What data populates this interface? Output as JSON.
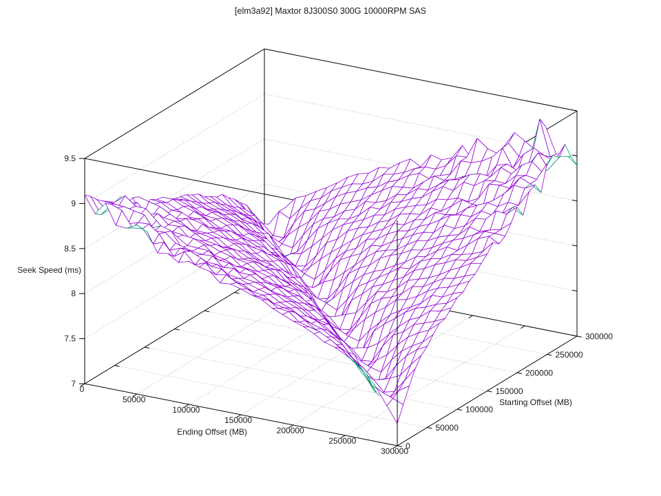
{
  "title": "[elm3a92] Maxtor 8J300S0 300G 10000RPM SAS",
  "chart_data": {
    "type": "surface3d",
    "title": "[elm3a92] Maxtor 8J300S0 300G 10000RPM SAS",
    "xlabel": "Ending Offset (MB)",
    "ylabel": "Starting Offset (MB)",
    "zlabel": "Seek Speed (ms)",
    "x_range": [
      0,
      300000
    ],
    "y_range": [
      0,
      300000
    ],
    "z_range": [
      7,
      9.5
    ],
    "x_ticks": [
      0,
      50000,
      100000,
      150000,
      200000,
      250000,
      300000
    ],
    "y_ticks": [
      0,
      50000,
      100000,
      150000,
      200000,
      250000,
      300000
    ],
    "z_ticks": [
      7,
      7.5,
      8,
      8.5,
      9,
      9.5
    ],
    "grid": true,
    "legend": "none",
    "surface_color": "#9400d3",
    "underside_color": "#009e73",
    "frame_color": "#000000",
    "grid_color": "#8a8a8a",
    "mesh_step_mb": 10000,
    "noise_amp": 0.028,
    "z_grid_x": [
      0,
      25000,
      50000,
      75000,
      100000,
      125000,
      150000,
      175000,
      200000,
      225000,
      250000,
      275000,
      300000
    ],
    "z_grid_y": [
      0,
      25000,
      50000,
      75000,
      100000,
      125000,
      150000,
      175000,
      200000,
      225000,
      250000,
      275000,
      300000
    ],
    "z_grid": [
      [
        7.42,
        7.87,
        8.06,
        8.22,
        8.35,
        8.48,
        8.6,
        8.71,
        8.82,
        8.92,
        9.05,
        9.12,
        8.92
      ],
      [
        7.86,
        7.4,
        7.85,
        8.05,
        8.2,
        8.34,
        8.46,
        8.58,
        8.69,
        8.8,
        8.91,
        9.01,
        9.11
      ],
      [
        8.04,
        7.84,
        7.39,
        7.84,
        8.03,
        8.19,
        8.32,
        8.45,
        8.57,
        8.68,
        8.79,
        8.89,
        9.0
      ],
      [
        8.17,
        8.02,
        7.83,
        7.38,
        7.82,
        8.02,
        8.17,
        8.31,
        8.43,
        8.55,
        8.66,
        8.77,
        8.88
      ],
      [
        8.29,
        8.16,
        8.01,
        7.81,
        7.36,
        7.81,
        8.0,
        8.16,
        8.29,
        8.42,
        8.54,
        8.65,
        8.76
      ],
      [
        8.38,
        8.27,
        8.14,
        7.99,
        7.8,
        7.35,
        7.79,
        7.99,
        8.14,
        8.28,
        8.4,
        8.52,
        8.63
      ],
      [
        8.47,
        8.37,
        8.26,
        8.13,
        7.98,
        7.78,
        7.33,
        7.78,
        7.97,
        8.13,
        8.26,
        8.39,
        8.51
      ],
      [
        8.55,
        8.46,
        8.35,
        8.24,
        8.11,
        7.96,
        7.77,
        7.32,
        7.76,
        7.96,
        8.11,
        8.25,
        8.37
      ],
      [
        8.63,
        8.54,
        8.44,
        8.34,
        8.23,
        8.1,
        7.95,
        7.75,
        7.3,
        7.75,
        7.94,
        8.1,
        8.23
      ],
      [
        8.69,
        8.61,
        8.52,
        8.43,
        8.32,
        8.21,
        8.08,
        7.93,
        7.74,
        7.29,
        7.73,
        7.93,
        8.08
      ],
      [
        8.88,
        8.8,
        8.6,
        8.51,
        8.41,
        8.31,
        8.2,
        8.07,
        7.92,
        7.72,
        7.27,
        7.72,
        7.91
      ],
      [
        8.95,
        8.87,
        8.76,
        8.58,
        8.49,
        8.4,
        8.29,
        8.18,
        8.05,
        7.9,
        7.71,
        7.26,
        7.7
      ],
      [
        9.0,
        8.92,
        8.82,
        8.65,
        8.57,
        8.48,
        8.38,
        8.28,
        8.17,
        8.04,
        7.89,
        7.69,
        7.24
      ]
    ],
    "spikes": [
      {
        "x": 210000,
        "y": 10000,
        "dz": 0.3
      },
      {
        "x": 270000,
        "y": 10000,
        "dz": 0.26
      },
      {
        "x": 240000,
        "y": 20000,
        "dz": 0.18
      },
      {
        "x": 20000,
        "y": 10000,
        "dz": 0.14
      }
    ]
  }
}
